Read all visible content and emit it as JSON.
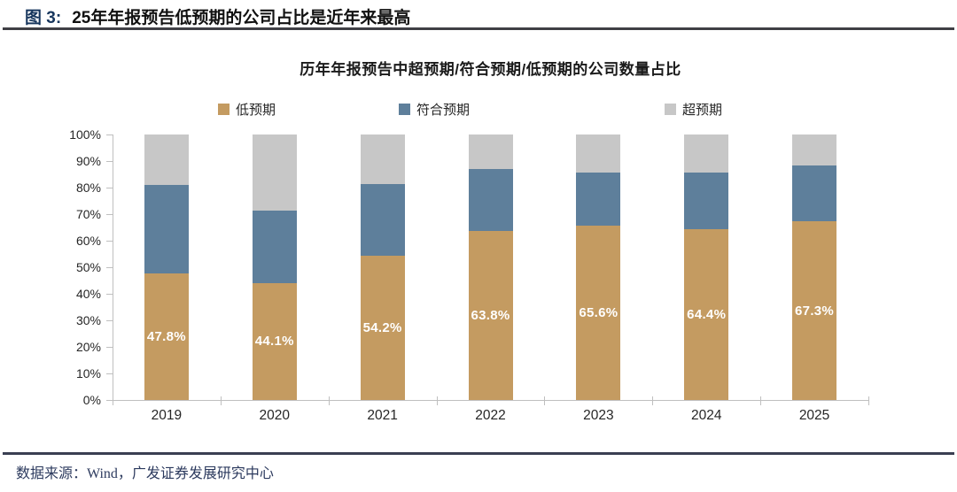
{
  "figure_header": {
    "label": "图 3:",
    "title": "25年年报预告低预期的公司占比是近年来最高"
  },
  "chart_data": {
    "type": "bar",
    "stacked": true,
    "title": "历年年报预告中超预期/符合预期/低预期的公司数量占比",
    "categories": [
      "2019",
      "2020",
      "2021",
      "2022",
      "2023",
      "2024",
      "2025"
    ],
    "series": [
      {
        "name": "低预期",
        "color": "#C49B61",
        "values": [
          47.8,
          44.1,
          54.2,
          63.8,
          65.6,
          64.4,
          67.3
        ],
        "data_labels": [
          "47.8%",
          "44.1%",
          "54.2%",
          "63.8%",
          "65.6%",
          "64.4%",
          "67.3%"
        ]
      },
      {
        "name": "符合预期",
        "color": "#5E7F9B",
        "values": [
          33.1,
          27.4,
          27.2,
          23.2,
          20.2,
          21.2,
          20.9
        ]
      },
      {
        "name": "超预期",
        "color": "#C7C7C7",
        "values": [
          19.1,
          28.5,
          18.6,
          13.0,
          14.2,
          14.4,
          11.8
        ]
      }
    ],
    "ylim": [
      0,
      100
    ],
    "ytick_labels": [
      "0%",
      "10%",
      "20%",
      "30%",
      "40%",
      "50%",
      "60%",
      "70%",
      "80%",
      "90%",
      "100%"
    ],
    "legend_position": "top",
    "grid": false,
    "data_label_color": "#FFFFFF"
  },
  "footer": {
    "source": "数据来源：Wind，广发证券发展研究中心"
  }
}
